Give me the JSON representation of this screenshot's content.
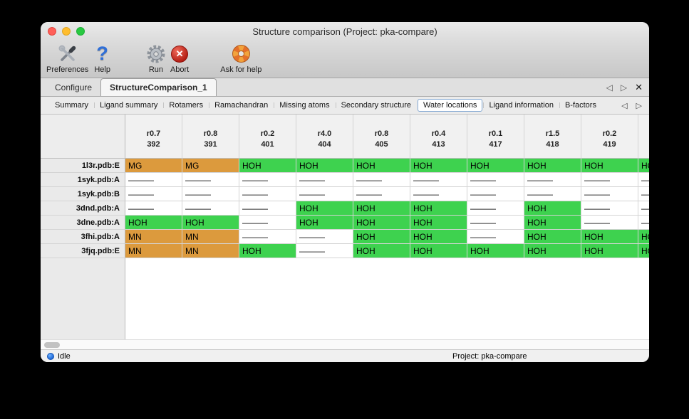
{
  "window": {
    "title": "Structure comparison (Project: pka-compare)"
  },
  "toolbar": {
    "items": [
      {
        "label": "Preferences",
        "icon": "tools-icon"
      },
      {
        "label": "Help",
        "icon": "question-mark-icon"
      },
      {
        "label": "Run",
        "icon": "gear-icon"
      },
      {
        "label": "Abort",
        "icon": "abort-icon"
      },
      {
        "label": "Ask for help",
        "icon": "lifebuoy-icon"
      }
    ]
  },
  "tab_bar": {
    "tabs": [
      {
        "label": "Configure",
        "active": false
      },
      {
        "label": "StructureComparison_1",
        "active": true
      }
    ],
    "prev_arrow": "◁",
    "next_arrow": "▷",
    "close": "✕"
  },
  "subtab_bar": {
    "tabs": [
      "Summary",
      "Ligand summary",
      "Rotamers",
      "Ramachandran",
      "Missing atoms",
      "Secondary structure",
      "Water locations",
      "Ligand information",
      "B-factors"
    ],
    "selected": "Water locations",
    "prev_arrow": "◁",
    "next_arrow": "▷"
  },
  "table": {
    "col_headers": [
      [
        "r0.7",
        "392"
      ],
      [
        "r0.8",
        "391"
      ],
      [
        "r0.2",
        "401"
      ],
      [
        "r4.0",
        "404"
      ],
      [
        "r0.8",
        "405"
      ],
      [
        "r0.4",
        "413"
      ],
      [
        "r0.1",
        "417"
      ],
      [
        "r1.5",
        "418"
      ],
      [
        "r0.2",
        "419"
      ],
      [
        "",
        ""
      ]
    ],
    "rows": [
      {
        "label": "1l3r.pdb:E",
        "cells": [
          {
            "t": "MG",
            "c": "metal"
          },
          {
            "t": "MG",
            "c": "metal"
          },
          {
            "t": "HOH",
            "c": "water"
          },
          {
            "t": "HOH",
            "c": "water"
          },
          {
            "t": "HOH",
            "c": "water"
          },
          {
            "t": "HOH",
            "c": "water"
          },
          {
            "t": "HOH",
            "c": "water"
          },
          {
            "t": "HOH",
            "c": "water"
          },
          {
            "t": "HOH",
            "c": "water"
          },
          {
            "t": "HOH",
            "c": "water"
          }
        ]
      },
      {
        "label": "1syk.pdb:A",
        "cells": [
          {
            "t": "———",
            "c": "missing"
          },
          {
            "t": "———",
            "c": "missing"
          },
          {
            "t": "———",
            "c": "missing"
          },
          {
            "t": "———",
            "c": "missing"
          },
          {
            "t": "———",
            "c": "missing"
          },
          {
            "t": "———",
            "c": "missing"
          },
          {
            "t": "———",
            "c": "missing"
          },
          {
            "t": "———",
            "c": "missing"
          },
          {
            "t": "———",
            "c": "missing"
          },
          {
            "t": "———",
            "c": "missing"
          }
        ]
      },
      {
        "label": "1syk.pdb:B",
        "cells": [
          {
            "t": "———",
            "c": "missing"
          },
          {
            "t": "———",
            "c": "missing"
          },
          {
            "t": "———",
            "c": "missing"
          },
          {
            "t": "———",
            "c": "missing"
          },
          {
            "t": "———",
            "c": "missing"
          },
          {
            "t": "———",
            "c": "missing"
          },
          {
            "t": "———",
            "c": "missing"
          },
          {
            "t": "———",
            "c": "missing"
          },
          {
            "t": "———",
            "c": "missing"
          },
          {
            "t": "———",
            "c": "missing"
          }
        ]
      },
      {
        "label": "3dnd.pdb:A",
        "cells": [
          {
            "t": "———",
            "c": "missing"
          },
          {
            "t": "———",
            "c": "missing"
          },
          {
            "t": "———",
            "c": "missing"
          },
          {
            "t": "HOH",
            "c": "water"
          },
          {
            "t": "HOH",
            "c": "water"
          },
          {
            "t": "HOH",
            "c": "water"
          },
          {
            "t": "———",
            "c": "missing"
          },
          {
            "t": "HOH",
            "c": "water"
          },
          {
            "t": "———",
            "c": "missing"
          },
          {
            "t": "———",
            "c": "missing"
          }
        ]
      },
      {
        "label": "3dne.pdb:A",
        "cells": [
          {
            "t": "HOH",
            "c": "water"
          },
          {
            "t": "HOH",
            "c": "water"
          },
          {
            "t": "———",
            "c": "missing"
          },
          {
            "t": "HOH",
            "c": "water"
          },
          {
            "t": "HOH",
            "c": "water"
          },
          {
            "t": "HOH",
            "c": "water"
          },
          {
            "t": "———",
            "c": "missing"
          },
          {
            "t": "HOH",
            "c": "water"
          },
          {
            "t": "———",
            "c": "missing"
          },
          {
            "t": "———",
            "c": "missing"
          }
        ]
      },
      {
        "label": "3fhi.pdb:A",
        "cells": [
          {
            "t": "MN",
            "c": "metal"
          },
          {
            "t": "MN",
            "c": "metal"
          },
          {
            "t": "———",
            "c": "missing"
          },
          {
            "t": "———",
            "c": "missing"
          },
          {
            "t": "HOH",
            "c": "water"
          },
          {
            "t": "HOH",
            "c": "water"
          },
          {
            "t": "———",
            "c": "missing"
          },
          {
            "t": "HOH",
            "c": "water"
          },
          {
            "t": "HOH",
            "c": "water"
          },
          {
            "t": "HOH",
            "c": "water"
          }
        ]
      },
      {
        "label": "3fjq.pdb:E",
        "cells": [
          {
            "t": "MN",
            "c": "metal"
          },
          {
            "t": "MN",
            "c": "metal"
          },
          {
            "t": "HOH",
            "c": "water"
          },
          {
            "t": "———",
            "c": "missing"
          },
          {
            "t": "HOH",
            "c": "water"
          },
          {
            "t": "HOH",
            "c": "water"
          },
          {
            "t": "HOH",
            "c": "water"
          },
          {
            "t": "HOH",
            "c": "water"
          },
          {
            "t": "HOH",
            "c": "water"
          },
          {
            "t": "HOH",
            "c": "water"
          }
        ]
      }
    ]
  },
  "status_bar": {
    "status": "Idle",
    "project": "Project: pka-compare"
  },
  "colors": {
    "water_green": "#3ed24f",
    "metal_orange": "#dc9a3d",
    "missing_white": "#ffffff"
  }
}
